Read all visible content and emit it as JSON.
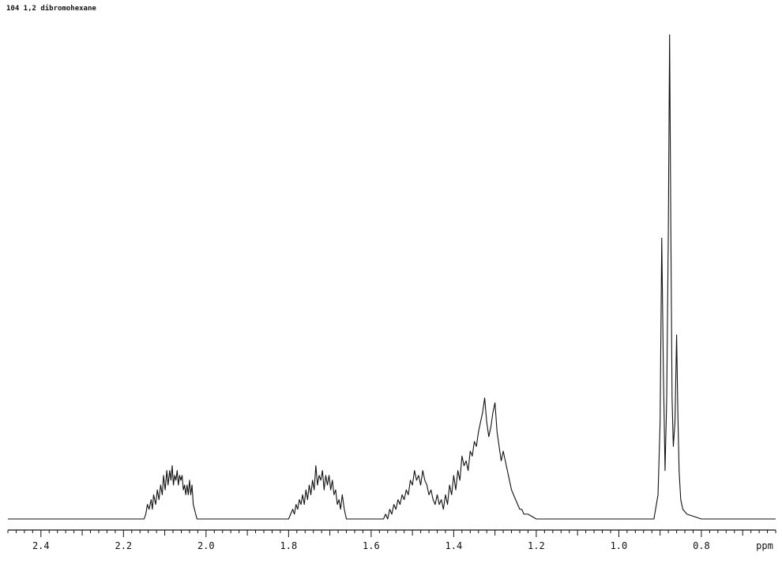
{
  "title": "104 1,2 dibromohexane",
  "chart_data": {
    "type": "line",
    "title": "104 1,2 dibromohexane",
    "xlabel": "ppm",
    "ylabel": "",
    "x_reversed": true,
    "xlim": [
      2.48,
      0.62
    ],
    "ylim": [
      0,
      100
    ],
    "grid": false,
    "tick_labels": [
      "2.4",
      "2.2",
      "2.0",
      "1.8",
      "1.6",
      "1.4",
      "1.2",
      "1.0",
      "0.8"
    ],
    "series": [
      {
        "x": [
          2.48,
          2.15,
          2.146,
          2.142,
          2.138,
          2.133,
          2.13,
          2.127,
          2.122,
          2.118,
          2.114,
          2.11,
          2.106,
          2.103,
          2.099,
          2.095,
          2.092,
          2.088,
          2.085,
          2.082,
          2.079,
          2.076,
          2.073,
          2.07,
          2.067,
          2.064,
          2.061,
          2.058,
          2.055,
          2.052,
          2.049,
          2.046,
          2.043,
          2.04,
          2.037,
          2.034,
          2.031,
          2.028,
          2.022,
          2.0,
          1.95,
          1.9,
          1.85,
          1.8,
          1.795,
          1.79,
          1.786,
          1.782,
          1.778,
          1.774,
          1.77,
          1.766,
          1.762,
          1.758,
          1.754,
          1.75,
          1.746,
          1.742,
          1.738,
          1.734,
          1.73,
          1.726,
          1.722,
          1.718,
          1.714,
          1.71,
          1.706,
          1.702,
          1.698,
          1.694,
          1.69,
          1.686,
          1.682,
          1.678,
          1.674,
          1.67,
          1.665,
          1.66,
          1.6,
          1.57,
          1.565,
          1.56,
          1.555,
          1.55,
          1.545,
          1.54,
          1.535,
          1.53,
          1.525,
          1.52,
          1.515,
          1.51,
          1.505,
          1.5,
          1.495,
          1.49,
          1.485,
          1.48,
          1.475,
          1.47,
          1.465,
          1.46,
          1.455,
          1.45,
          1.445,
          1.44,
          1.435,
          1.43,
          1.425,
          1.42,
          1.415,
          1.41,
          1.405,
          1.4,
          1.395,
          1.39,
          1.385,
          1.38,
          1.375,
          1.37,
          1.365,
          1.36,
          1.355,
          1.35,
          1.345,
          1.34,
          1.335,
          1.33,
          1.325,
          1.32,
          1.315,
          1.31,
          1.305,
          1.3,
          1.295,
          1.29,
          1.285,
          1.28,
          1.275,
          1.27,
          1.265,
          1.26,
          1.255,
          1.25,
          1.245,
          1.24,
          1.235,
          1.23,
          1.22,
          1.2,
          1.15,
          1.1,
          1.05,
          1.0,
          0.95,
          0.93,
          0.915,
          0.905,
          0.9,
          0.896,
          0.892,
          0.888,
          0.884,
          0.88,
          0.877,
          0.874,
          0.871,
          0.868,
          0.864,
          0.86,
          0.857,
          0.854,
          0.85,
          0.845,
          0.835,
          0.8,
          0.75,
          0.7,
          0.65,
          0.62
        ],
        "y": [
          0,
          0,
          1,
          3,
          2,
          4,
          2,
          5,
          3,
          6,
          4,
          7,
          5,
          9,
          6,
          10,
          7,
          10,
          8,
          11,
          7,
          9,
          8,
          10,
          7,
          9,
          8,
          9,
          6,
          7,
          5,
          7,
          5,
          8,
          5,
          7,
          3,
          2,
          0,
          0,
          0,
          0,
          0,
          0,
          1,
          2,
          1,
          3,
          2,
          4,
          3,
          5,
          3,
          6,
          4,
          7,
          5,
          8,
          6,
          11,
          7,
          9,
          8,
          10,
          6,
          9,
          7,
          9,
          6,
          8,
          5,
          6,
          3,
          4,
          2,
          5,
          2,
          0,
          0,
          0,
          1,
          0,
          2,
          1,
          3,
          2,
          4,
          3,
          5,
          4,
          6,
          5,
          8,
          7,
          10,
          8,
          9,
          7,
          10,
          8,
          7,
          5,
          6,
          4,
          3,
          5,
          3,
          4,
          2,
          5,
          3,
          7,
          5,
          9,
          6,
          10,
          8,
          13,
          11,
          12,
          10,
          14,
          13,
          16,
          15,
          18,
          20,
          22,
          25,
          20,
          17,
          19,
          22,
          24,
          18,
          15,
          12,
          14,
          12,
          10,
          8,
          6,
          5,
          4,
          3,
          2,
          2,
          1,
          1,
          0,
          0,
          0,
          0,
          0,
          0,
          0,
          0,
          5,
          20,
          58,
          30,
          10,
          25,
          60,
          100,
          60,
          25,
          15,
          20,
          38,
          22,
          10,
          4,
          2,
          1,
          0,
          0,
          0,
          0,
          0
        ]
      }
    ]
  }
}
